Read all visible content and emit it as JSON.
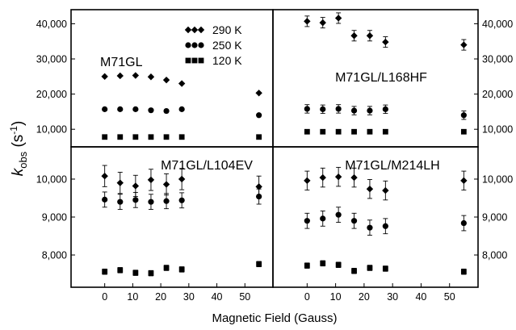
{
  "chart_data": {
    "type": "scatter",
    "xlabel": "Magnetic Field (Gauss)",
    "ylabel_main": "k",
    "ylabel_sub": "obs",
    "ylabel_unit_pre": " (s",
    "ylabel_unit_sup": "-1",
    "ylabel_unit_post": ")",
    "xlim": [
      -12,
      60
    ],
    "xticks": [
      0,
      10,
      20,
      30,
      40,
      50
    ],
    "legend": [
      {
        "name": "290 K",
        "marker": "diamond"
      },
      {
        "name": "250 K",
        "marker": "circle"
      },
      {
        "name": "120 K",
        "marker": "square"
      }
    ],
    "panels": [
      {
        "title": "M71GL",
        "ylim": [
          5000,
          44000
        ],
        "yticks": [
          10000,
          20000,
          30000,
          40000
        ],
        "ytick_labels": [
          "10,000",
          "20,000",
          "30,000",
          "40,000"
        ],
        "series": [
          {
            "name": "290 K",
            "marker": "diamond",
            "x": [
              0,
              5.5,
              11,
              16.5,
              22,
              27.5,
              55
            ],
            "y": [
              25000,
              25200,
              25300,
              24900,
              24000,
              23000,
              20300
            ],
            "err": [
              0,
              0,
              0,
              0,
              0,
              0,
              0
            ]
          },
          {
            "name": "250 K",
            "marker": "circle",
            "x": [
              0,
              5.5,
              11,
              16.5,
              22,
              27.5,
              55
            ],
            "y": [
              15700,
              15700,
              15700,
              15400,
              15200,
              15700,
              14000
            ],
            "err": [
              0,
              0,
              0,
              0,
              0,
              0,
              0
            ]
          },
          {
            "name": "120 K",
            "marker": "square",
            "x": [
              0,
              5.5,
              11,
              16.5,
              22,
              27.5,
              55
            ],
            "y": [
              7800,
              7800,
              7800,
              7800,
              7800,
              7800,
              7800
            ],
            "err": [
              0,
              0,
              0,
              0,
              0,
              0,
              0
            ]
          }
        ]
      },
      {
        "title": "M71GL/L168HF",
        "ylim": [
          5000,
          44000
        ],
        "yticks": [
          10000,
          20000,
          30000,
          40000
        ],
        "ytick_labels": [
          "10,000",
          "20,000",
          "30,000",
          "40,000"
        ],
        "series": [
          {
            "name": "290 K",
            "marker": "diamond",
            "x": [
              0,
              5.5,
              11,
              16.5,
              22,
              27.5,
              55
            ],
            "y": [
              40700,
              40300,
              41600,
              36600,
              36600,
              34800,
              34000
            ],
            "err": [
              1500,
              1500,
              1500,
              1500,
              1500,
              1500,
              1500
            ]
          },
          {
            "name": "250 K",
            "marker": "circle",
            "x": [
              0,
              5.5,
              11,
              16.5,
              22,
              27.5,
              55
            ],
            "y": [
              15800,
              15700,
              15800,
              15300,
              15300,
              15700,
              14000
            ],
            "err": [
              1200,
              1200,
              1200,
              1200,
              1200,
              1200,
              1200
            ]
          },
          {
            "name": "120 K",
            "marker": "square",
            "x": [
              0,
              5.5,
              11,
              16.5,
              22,
              27.5,
              55
            ],
            "y": [
              9300,
              9300,
              9300,
              9300,
              9300,
              9300,
              9300
            ],
            "err": [
              0,
              0,
              0,
              0,
              0,
              0,
              0
            ]
          }
        ]
      },
      {
        "title": "M71GL/L104EV",
        "ylim": [
          7150,
          10850
        ],
        "yticks": [
          8000,
          9000,
          10000
        ],
        "ytick_labels": [
          "8,000",
          "9,000",
          "10,000"
        ],
        "series": [
          {
            "name": "290 K",
            "marker": "diamond",
            "x": [
              0,
              5.5,
              11,
              16.5,
              22,
              27.5,
              55
            ],
            "y": [
              10080,
              9900,
              9820,
              9980,
              9860,
              10000,
              9800
            ],
            "err": [
              280,
              280,
              280,
              280,
              280,
              280,
              280
            ]
          },
          {
            "name": "250 K",
            "marker": "circle",
            "x": [
              0,
              5.5,
              11,
              16.5,
              22,
              27.5,
              55
            ],
            "y": [
              9460,
              9400,
              9450,
              9400,
              9420,
              9440,
              9540
            ],
            "err": [
              200,
              200,
              200,
              200,
              200,
              200,
              200
            ]
          },
          {
            "name": "120 K",
            "marker": "square",
            "x": [
              0,
              5.5,
              11,
              16.5,
              22,
              27.5,
              55
            ],
            "y": [
              7560,
              7600,
              7530,
              7520,
              7660,
              7620,
              7760
            ],
            "err": [
              70,
              70,
              70,
              70,
              70,
              70,
              70
            ]
          }
        ]
      },
      {
        "title": "M71GL/M214LH",
        "ylim": [
          7150,
          10850
        ],
        "yticks": [
          8000,
          9000,
          10000
        ],
        "ytick_labels": [
          "8,000",
          "9,000",
          "10,000"
        ],
        "series": [
          {
            "name": "290 K",
            "marker": "diamond",
            "x": [
              0,
              5.5,
              11,
              16.5,
              22,
              27.5,
              55
            ],
            "y": [
              9960,
              10040,
              10060,
              10040,
              9740,
              9700,
              9960
            ],
            "err": [
              250,
              250,
              250,
              250,
              250,
              250,
              250
            ]
          },
          {
            "name": "250 K",
            "marker": "circle",
            "x": [
              0,
              5.5,
              11,
              16.5,
              22,
              27.5,
              55
            ],
            "y": [
              8900,
              8960,
              9060,
              8900,
              8720,
              8760,
              8840
            ],
            "err": [
              200,
              200,
              200,
              200,
              200,
              200,
              200
            ]
          },
          {
            "name": "120 K",
            "marker": "square",
            "x": [
              0,
              5.5,
              11,
              16.5,
              22,
              27.5,
              55
            ],
            "y": [
              7720,
              7780,
              7740,
              7580,
              7660,
              7640,
              7560
            ],
            "err": [
              70,
              70,
              70,
              70,
              70,
              70,
              70
            ]
          }
        ]
      }
    ]
  }
}
